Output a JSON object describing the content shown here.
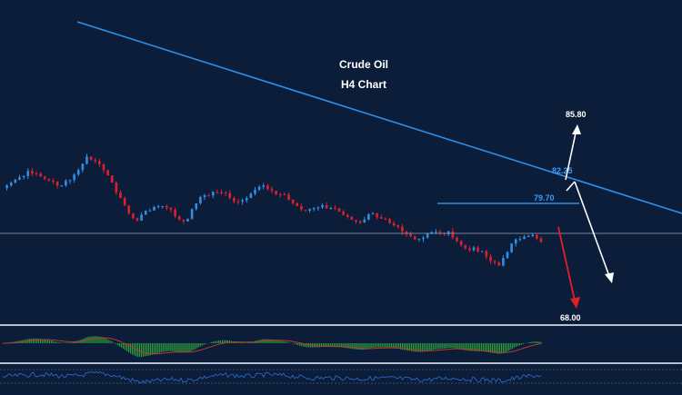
{
  "chart_data": {
    "type": "candlestick",
    "title_line1": "Crude Oil",
    "title_line2": "H4 Chart",
    "levels": {
      "target_up": "85.80",
      "resistance_upper": "82.25",
      "resistance": "79.70",
      "target_down": "68.00"
    },
    "colors": {
      "background": "#0b1d38",
      "bull": "#2f8fe6",
      "bear": "#e01f2e",
      "trendline": "#2d8fe9",
      "level_text": "#3b9bff",
      "arrow_up": "#ffffff",
      "arrow_down": "#e21d2b",
      "osc_pos": "#2e9e3f",
      "osc_neg": "#2e9e3f",
      "signal": "#c0392b",
      "panel_line": "#b8c0cc"
    },
    "price_path": [
      81.4,
      82.0,
      82.6,
      83.3,
      83.0,
      82.4,
      82.1,
      81.7,
      82.3,
      83.4,
      84.9,
      84.4,
      83.4,
      82.0,
      80.3,
      78.6,
      77.8,
      78.9,
      79.3,
      79.4,
      79.0,
      77.9,
      78.0,
      79.7,
      80.6,
      81.0,
      80.9,
      80.3,
      79.9,
      80.3,
      81.2,
      81.7,
      81.1,
      80.7,
      80.1,
      79.4,
      78.9,
      79.2,
      79.5,
      79.2,
      78.8,
      78.2,
      77.7,
      77.9,
      78.6,
      78.0,
      77.5,
      77.1,
      76.3,
      75.7,
      75.9,
      76.5,
      76.4,
      76.6,
      75.5,
      74.7,
      74.8,
      74.4,
      73.3,
      72.8,
      74.3,
      75.7,
      76.0,
      76.2,
      75.4
    ]
  }
}
